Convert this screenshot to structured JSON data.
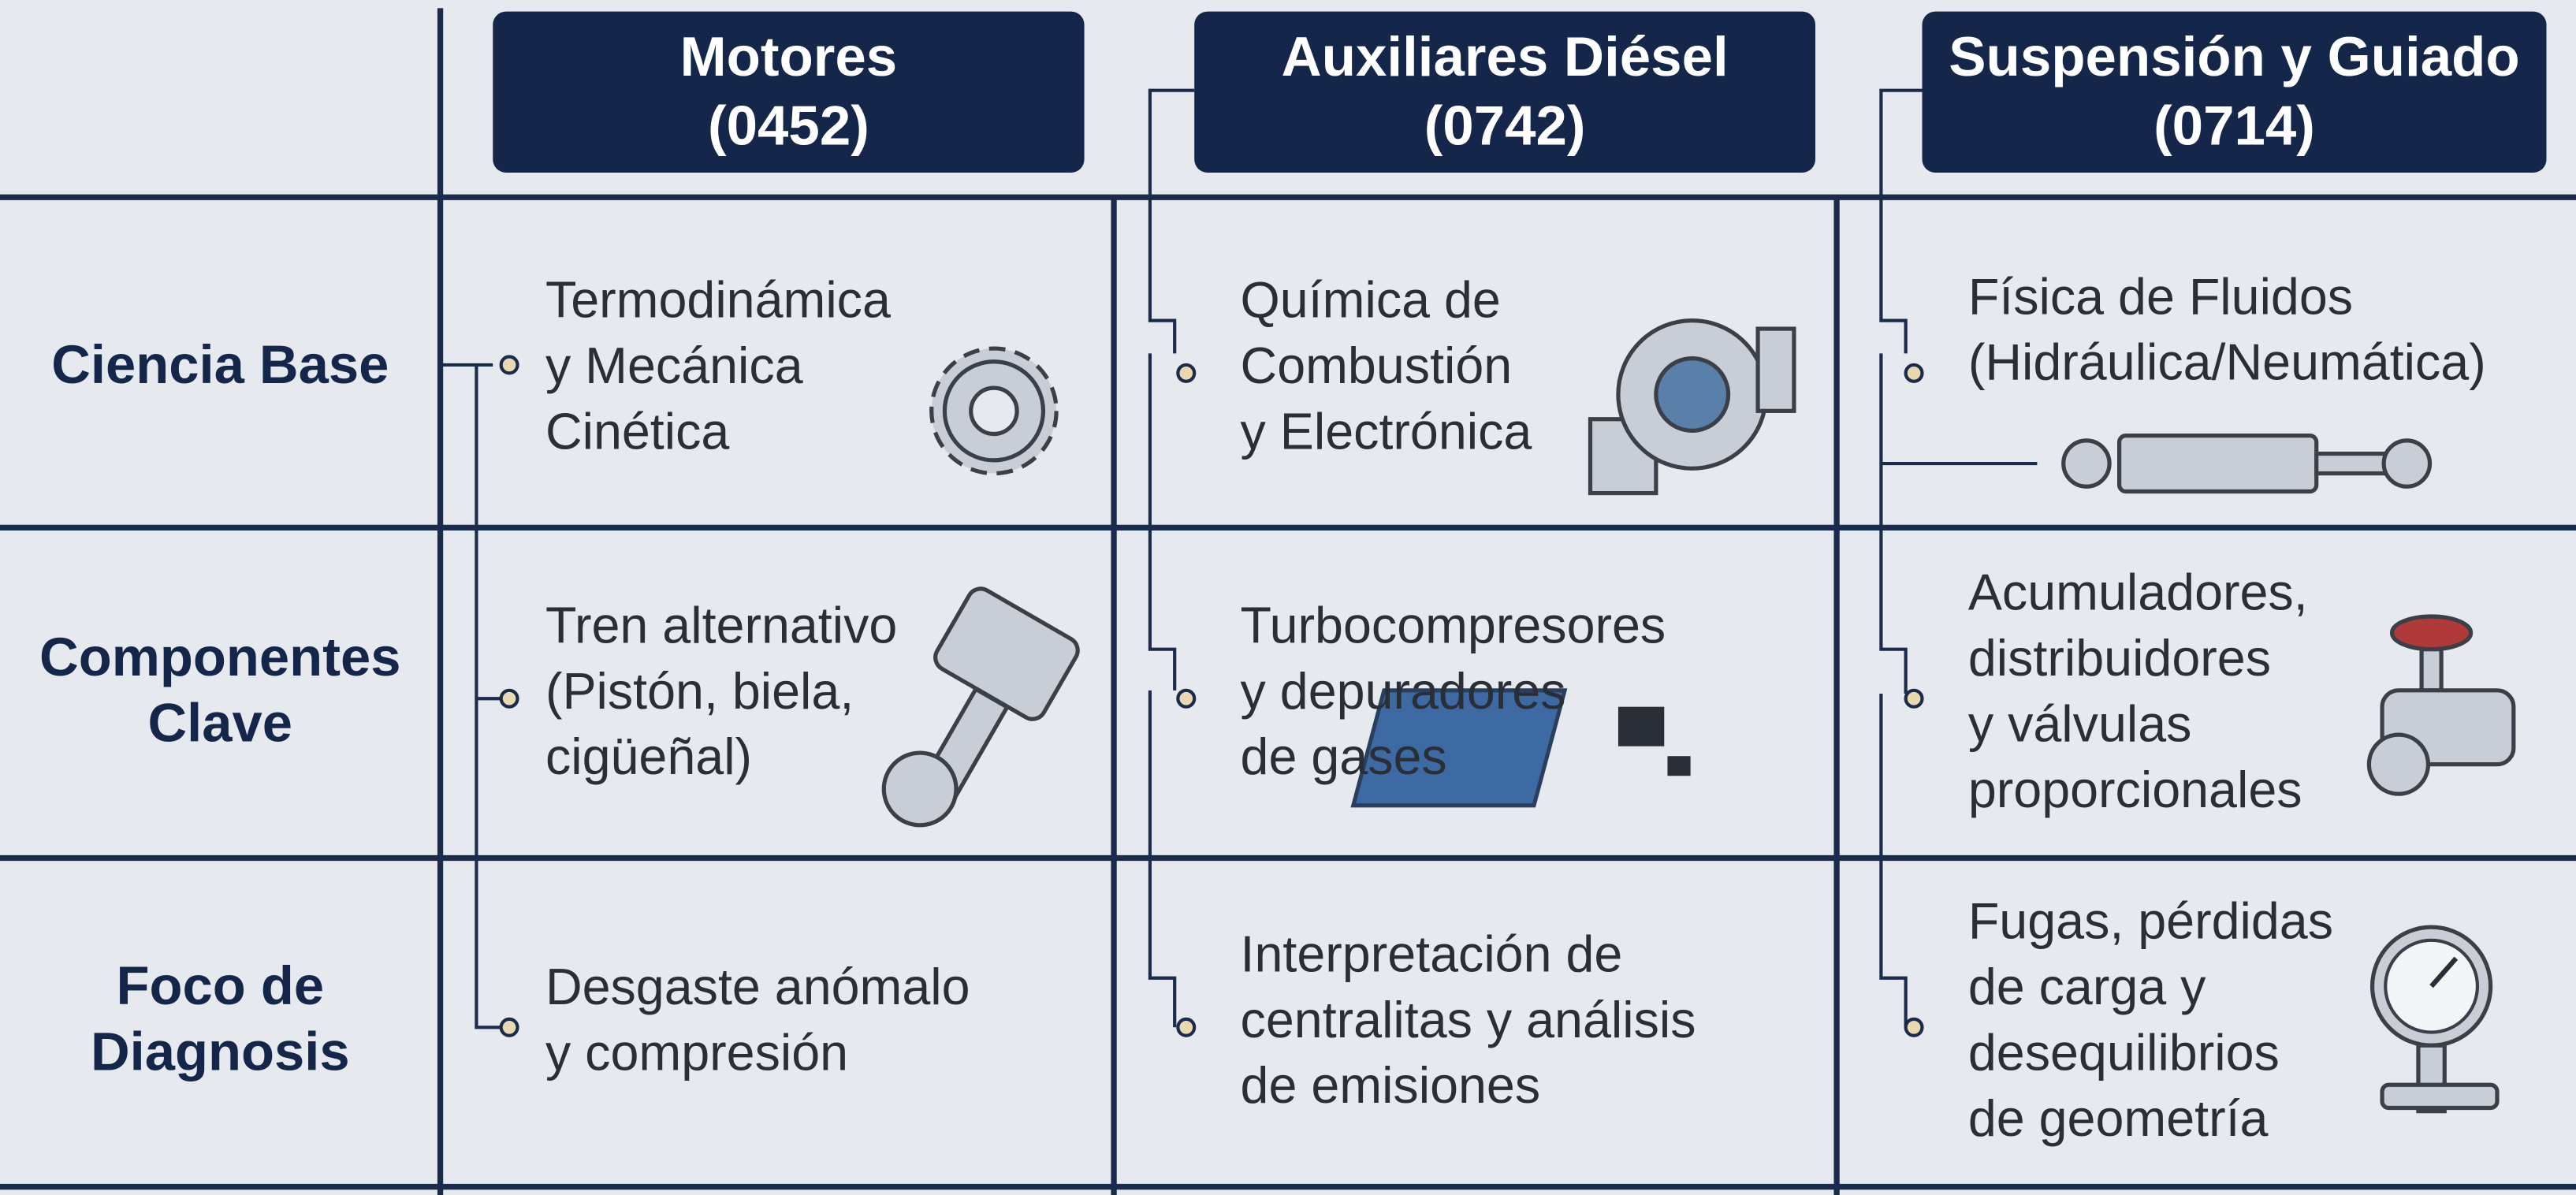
{
  "columns": [
    {
      "title": "Motores",
      "code": "(0452)"
    },
    {
      "title": "Auxiliares Diésel",
      "code": "(0742)"
    },
    {
      "title": "Suspensión y Guiado",
      "code": "(0714)"
    }
  ],
  "rows": [
    {
      "label": [
        "Ciencia Base"
      ],
      "cells": [
        [
          "Termodinámica",
          "y Mecánica",
          "Cinética"
        ],
        [
          "Química de",
          "Combustión",
          "y Electrónica"
        ],
        [
          "Física de Fluidos",
          "(Hidráulica/Neumática)"
        ]
      ]
    },
    {
      "label": [
        "Componentes",
        "Clave"
      ],
      "cells": [
        [
          "Tren alternativo",
          "(Pistón, biela,",
          "cigüeñal)"
        ],
        [
          "Turbocompresores",
          "y depuradores",
          "de gases"
        ],
        [
          "Acumuladores,",
          "distribuidores",
          "y válvulas",
          "proporcionales"
        ]
      ]
    },
    {
      "label": [
        "Foco de",
        "Diagnosis"
      ],
      "cells": [
        [
          "Desgaste anómalo",
          "y compresión"
        ],
        [
          "Interpretación de",
          "centralitas y análisis",
          "de emisiones"
        ],
        [
          "Fugas, pérdidas",
          "de carga y",
          "desequilibrios",
          "de geometría"
        ]
      ]
    }
  ]
}
